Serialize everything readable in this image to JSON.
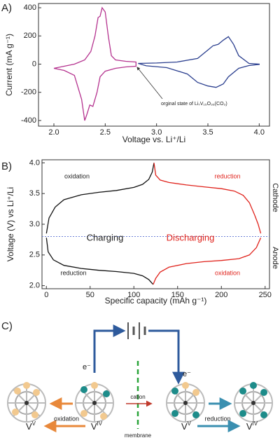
{
  "chart_data": [
    {
      "type": "line",
      "panel_label": "A)",
      "xlabel": "Voltage vs. Li⁺/Li",
      "ylabel": "Current (mA g⁻¹)",
      "xlim": [
        1.85,
        4.1
      ],
      "ylim": [
        -440,
        430
      ],
      "xticks": [
        {
          "value": 2,
          "label": "2.0"
        },
        {
          "value": 2.5,
          "label": "2.5"
        },
        {
          "value": 3,
          "label": "3.0"
        },
        {
          "value": 3.5,
          "label": "3.5"
        },
        {
          "value": 4,
          "label": "4.0"
        }
      ],
      "yticks": [
        -400,
        -200,
        0,
        200,
        400
      ],
      "annotations": [
        {
          "text": "orginal state of Li₇V₁₅O₃₆(CO₃)",
          "color": "#222222"
        }
      ],
      "series": [
        {
          "color": "#b5338f",
          "x": [
            2.0,
            2.1,
            2.2,
            2.3,
            2.36,
            2.4,
            2.43,
            2.45,
            2.47,
            2.5,
            2.53,
            2.56,
            2.6,
            2.7,
            2.8,
            2.8,
            2.7,
            2.6,
            2.5,
            2.45,
            2.42,
            2.38,
            2.35,
            2.32,
            2.3,
            2.27,
            2.2,
            2.1,
            2.0
          ],
          "values": [
            -30,
            -15,
            0,
            30,
            90,
            200,
            330,
            340,
            400,
            370,
            200,
            60,
            30,
            20,
            15,
            -15,
            -20,
            -30,
            -50,
            -90,
            -200,
            -300,
            -290,
            -360,
            -400,
            -250,
            -80,
            -45,
            -30
          ]
        },
        {
          "color": "#2b3f8f",
          "x": [
            2.82,
            3.0,
            3.2,
            3.4,
            3.5,
            3.55,
            3.6,
            3.65,
            3.7,
            3.75,
            3.8,
            3.9,
            4.0,
            4.0,
            3.9,
            3.8,
            3.7,
            3.65,
            3.58,
            3.5,
            3.4,
            3.3,
            3.1,
            2.9,
            2.82
          ],
          "values": [
            5,
            8,
            15,
            40,
            100,
            130,
            140,
            170,
            195,
            140,
            60,
            5,
            0,
            -2,
            -10,
            -30,
            -90,
            -140,
            -165,
            -155,
            -130,
            -70,
            -25,
            -12,
            5
          ]
        }
      ]
    },
    {
      "type": "line",
      "panel_label": "B)",
      "xlabel": "Specific capacity (mAh g⁻¹)",
      "ylabel": "Voltage (V) vs Li⁺/Li",
      "xlim": [
        -5,
        255
      ],
      "ylim": [
        1.95,
        4.05
      ],
      "xticks": [
        0,
        50,
        100,
        150,
        200,
        250
      ],
      "yticks": [
        {
          "value": 2,
          "label": "2.0"
        },
        {
          "value": 2.5,
          "label": "2.5"
        },
        {
          "value": 3,
          "label": "3.0"
        },
        {
          "value": 3.5,
          "label": "3.5"
        },
        {
          "value": 4,
          "label": "4.0"
        }
      ],
      "hline": {
        "value": 2.8,
        "color": "#6f82d6"
      },
      "annotations": [
        {
          "text": "oxidation",
          "color": "#222222"
        },
        {
          "text": "reduction",
          "color": "#e0231c"
        },
        {
          "text": "Charging",
          "color": "#222222"
        },
        {
          "text": "Discharging",
          "color": "#e0231c"
        },
        {
          "text": "reduction",
          "color": "#222222"
        },
        {
          "text": "oxidation",
          "color": "#e0231c"
        },
        {
          "text": "Cathode",
          "color": "#222222"
        },
        {
          "text": "Anode",
          "color": "#222222"
        }
      ],
      "series": [
        {
          "color": "#111111",
          "x": [
            0,
            3,
            10,
            20,
            40,
            60,
            80,
            100,
            110,
            117,
            121,
            123
          ],
          "values": [
            2.85,
            3.1,
            3.28,
            3.4,
            3.48,
            3.52,
            3.55,
            3.6,
            3.65,
            3.73,
            3.85,
            4.0
          ]
        },
        {
          "color": "#e0231c",
          "x": [
            123,
            125,
            130,
            140,
            160,
            180,
            200,
            215,
            225,
            232,
            238,
            242,
            245
          ],
          "values": [
            4.0,
            3.8,
            3.72,
            3.68,
            3.64,
            3.61,
            3.58,
            3.54,
            3.47,
            3.35,
            3.15,
            3.0,
            2.85
          ]
        },
        {
          "color": "#111111",
          "x": [
            0,
            2,
            8,
            20,
            40,
            60,
            80,
            100,
            110,
            117,
            122
          ],
          "values": [
            2.78,
            2.55,
            2.42,
            2.33,
            2.28,
            2.25,
            2.23,
            2.2,
            2.16,
            2.1,
            2.02
          ]
        },
        {
          "color": "#e0231c",
          "x": [
            122,
            125,
            130,
            140,
            160,
            180,
            200,
            220,
            232,
            240,
            245
          ],
          "values": [
            2.02,
            2.12,
            2.22,
            2.3,
            2.36,
            2.39,
            2.41,
            2.44,
            2.5,
            2.62,
            2.78
          ]
        }
      ]
    }
  ],
  "diagram": {
    "panel_label": "C)",
    "electron_left": "e⁻",
    "electron_right": "e⁻",
    "cation": "cation",
    "membrane": "membrane",
    "oxidation": "oxidation",
    "reduction": "reduction",
    "left_product": {
      "base": "V",
      "sup": "V"
    },
    "left_reactant": {
      "base": "V",
      "sup": "IV"
    },
    "right_reactant": {
      "base": "V",
      "sup": "V"
    },
    "right_product": {
      "base": "V",
      "sup": "IV"
    }
  }
}
